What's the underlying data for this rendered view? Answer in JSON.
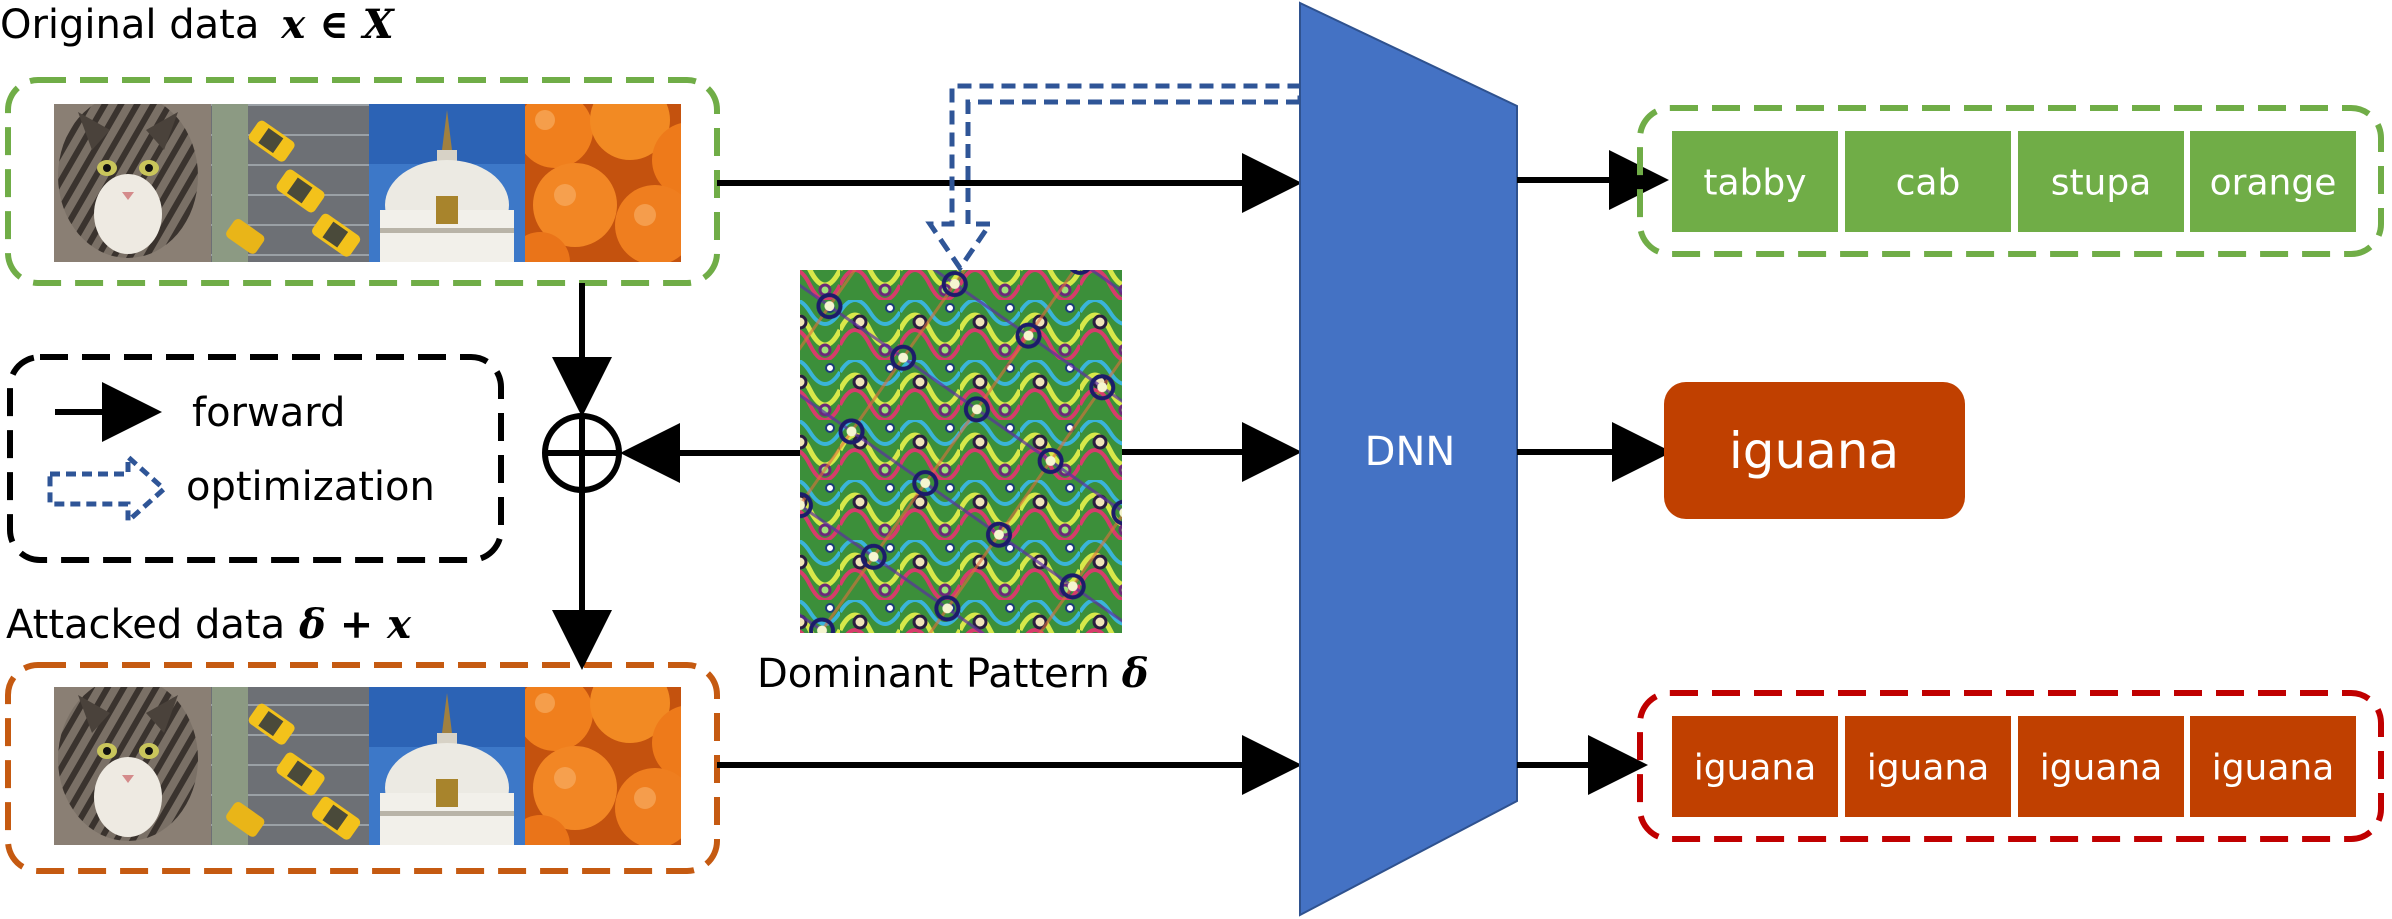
{
  "labels": {
    "original_prefix": "Original data",
    "original_math": "x ∈ X",
    "attacked_prefix": "Attacked data",
    "attacked_math": "δ + x",
    "pattern_prefix": "Dominant Pattern",
    "pattern_math": "δ",
    "dnn": "DNN",
    "legend_forward": "forward",
    "legend_optimization": "optimization",
    "single_output": "iguana"
  },
  "original_images": [
    {
      "name": "cat-image",
      "icon": "tabby-cat-photo"
    },
    {
      "name": "cab-image",
      "icon": "taxi-cabs-photo"
    },
    {
      "name": "stupa-image",
      "icon": "stupa-photo"
    },
    {
      "name": "orange-image",
      "icon": "oranges-photo"
    }
  ],
  "original_outputs": [
    "tabby",
    "cab",
    "stupa",
    "orange"
  ],
  "attacked_outputs": [
    "iguana",
    "iguana",
    "iguana",
    "iguana"
  ],
  "colors": {
    "green": "#70ad47",
    "orange_red": "#c04000",
    "dark_red": "#c00000",
    "dnn_blue": "#4472c4",
    "optimization_blue": "#2f5597"
  }
}
